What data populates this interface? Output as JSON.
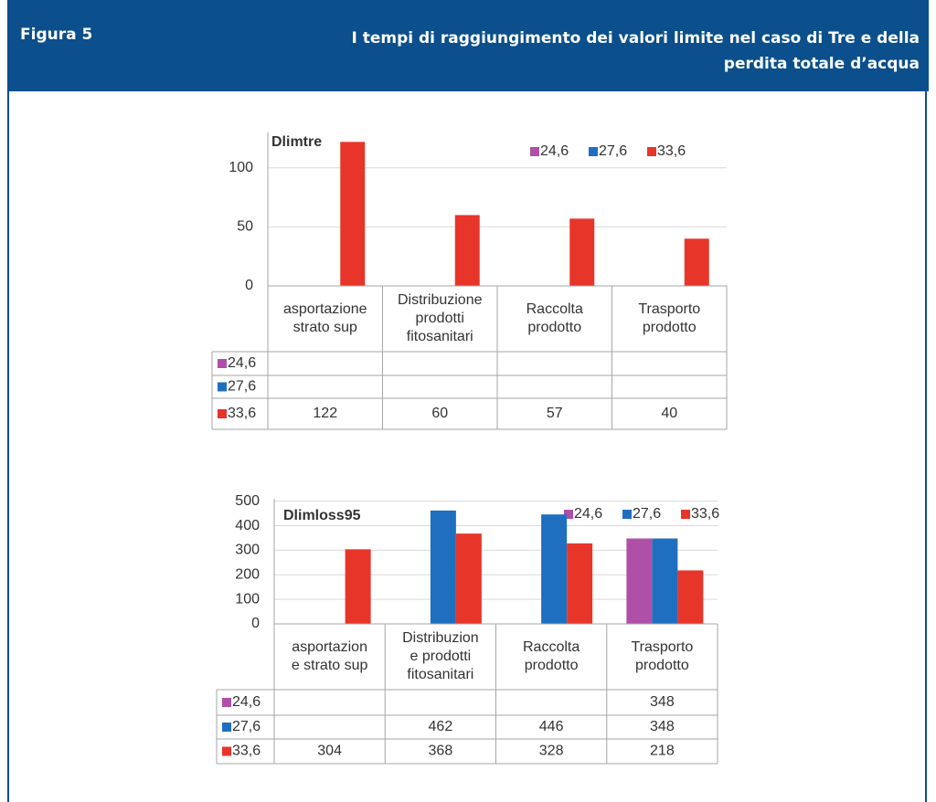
{
  "header": {
    "label": "Figura 5",
    "title": "I tempi di raggiungimento dei valori limite nel caso di Tre e della perdita totale d’acqua"
  },
  "chart_data": [
    {
      "type": "bar",
      "title": "Dlimtre",
      "categories": [
        "asportazione\nstrato sup",
        "Distribuzione\nprodotti\nfitosanitari",
        "Raccolta\nprodotto",
        "Trasporto\nprodotto"
      ],
      "series": [
        {
          "name": "24,6",
          "color": "#b04fa8",
          "values": [
            null,
            null,
            null,
            null
          ]
        },
        {
          "name": "27,6",
          "color": "#1f6fc0",
          "values": [
            null,
            null,
            null,
            null
          ]
        },
        {
          "name": "33,6",
          "color": "#e8352a",
          "values": [
            122,
            60,
            57,
            40
          ]
        }
      ],
      "ylim": [
        0,
        130
      ],
      "yticks": [
        0,
        50,
        100
      ],
      "grid": true,
      "legend": "top-right"
    },
    {
      "type": "bar",
      "title": "Dlimloss95",
      "categories": [
        "asportazion\ne strato sup",
        "Distribuzion\ne prodotti\nfitosanitari",
        "Raccolta\nprodotto",
        "Trasporto\nprodotto"
      ],
      "series": [
        {
          "name": "24,6",
          "color": "#b04fa8",
          "values": [
            null,
            null,
            null,
            348
          ]
        },
        {
          "name": "27,6",
          "color": "#1f6fc0",
          "values": [
            null,
            462,
            446,
            348
          ]
        },
        {
          "name": "33,6",
          "color": "#e8352a",
          "values": [
            304,
            368,
            328,
            218
          ]
        }
      ],
      "ylim": [
        0,
        510
      ],
      "yticks": [
        0,
        100,
        200,
        300,
        400,
        500
      ],
      "grid": true,
      "legend": "top-right"
    }
  ]
}
